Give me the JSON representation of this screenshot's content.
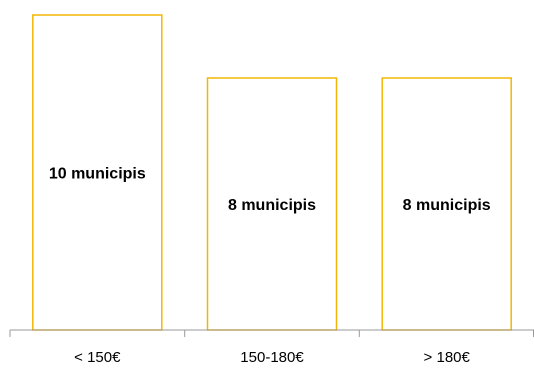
{
  "chart_data": {
    "type": "bar",
    "categories": [
      "< 150€",
      "150-180€",
      "> 180€"
    ],
    "values": [
      10,
      8,
      8
    ],
    "data_labels": [
      "10 municipis",
      "8 municipis",
      "8 municipis"
    ],
    "title": "",
    "xlabel": "",
    "ylabel": "",
    "ylim": [
      0,
      10
    ],
    "grid": false,
    "legend": "none",
    "colors": {
      "bar_outline": "#f2b705",
      "bar_fill": "#ffffff",
      "axis": "#9a9a9a",
      "text": "#000000"
    }
  }
}
